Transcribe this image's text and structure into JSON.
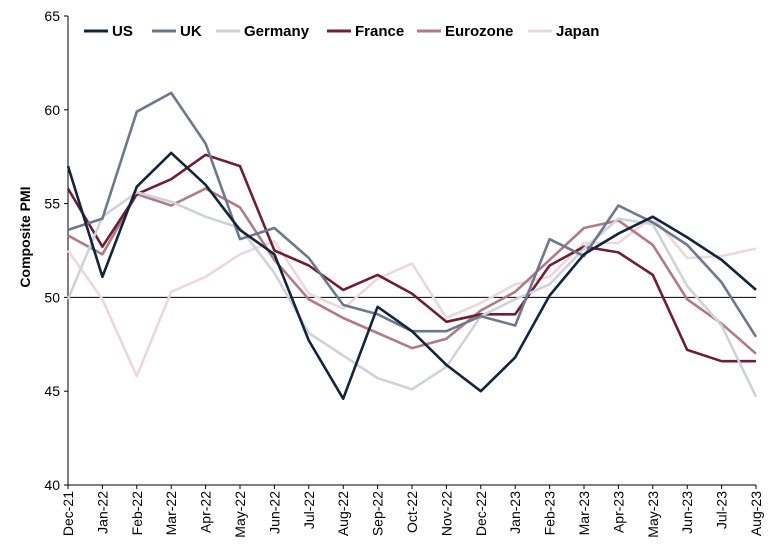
{
  "chart_data": {
    "type": "line",
    "ylabel": "Composite PMI",
    "ylim": [
      40,
      65
    ],
    "yticks": [
      "40",
      "45",
      "50",
      "55",
      "60",
      "65"
    ],
    "reference_line": 50,
    "legend_position": "top",
    "categories": [
      "Dec-21",
      "Jan-22",
      "Feb-22",
      "Mar-22",
      "Apr-22",
      "May-22",
      "Jun-22",
      "Jul-22",
      "Aug-22",
      "Sep-22",
      "Oct-22",
      "Nov-22",
      "Dec-22",
      "Jan-23",
      "Feb-23",
      "Mar-23",
      "Apr-23",
      "May-23",
      "Jun-23",
      "Jul-23",
      "Aug-23"
    ],
    "series": [
      {
        "name": "US",
        "color": "#13243c",
        "values": [
          57.0,
          51.1,
          55.9,
          57.7,
          56.0,
          53.6,
          52.3,
          47.7,
          44.6,
          49.5,
          48.2,
          46.4,
          45.0,
          46.8,
          50.1,
          52.3,
          53.4,
          54.3,
          53.2,
          52.0,
          50.4
        ]
      },
      {
        "name": "UK",
        "color": "#6e788c",
        "values": [
          53.6,
          54.2,
          59.9,
          60.9,
          58.2,
          53.1,
          53.7,
          52.1,
          49.6,
          49.1,
          48.2,
          48.2,
          49.0,
          48.5,
          53.1,
          52.2,
          54.9,
          54.0,
          52.8,
          50.8,
          47.9
        ]
      },
      {
        "name": "Germany",
        "color": "#cfd2da",
        "values": [
          49.9,
          54.3,
          55.6,
          55.1,
          54.3,
          53.7,
          51.3,
          48.1,
          46.9,
          45.7,
          45.1,
          46.3,
          49.0,
          49.9,
          50.7,
          52.6,
          54.2,
          53.9,
          50.6,
          48.5,
          44.7
        ]
      },
      {
        "name": "France",
        "color": "#6e1f36",
        "values": [
          55.8,
          52.7,
          55.5,
          56.3,
          57.6,
          57.0,
          52.5,
          51.7,
          50.4,
          51.2,
          50.2,
          48.7,
          49.1,
          49.1,
          51.7,
          52.7,
          52.4,
          51.2,
          47.2,
          46.6,
          46.6
        ]
      },
      {
        "name": "Eurozone",
        "color": "#b07a86",
        "values": [
          53.3,
          52.3,
          55.5,
          54.9,
          55.8,
          54.8,
          52.0,
          49.9,
          48.9,
          48.1,
          47.3,
          47.8,
          49.3,
          50.3,
          52.0,
          53.7,
          54.1,
          52.8,
          49.9,
          48.6,
          47.0
        ]
      },
      {
        "name": "Japan",
        "color": "#ecd7dc",
        "values": [
          52.5,
          49.9,
          45.8,
          50.3,
          51.1,
          52.3,
          53.0,
          50.2,
          49.4,
          51.0,
          51.8,
          48.9,
          49.7,
          50.7,
          51.1,
          52.9,
          52.9,
          54.3,
          52.1,
          52.2,
          52.6
        ]
      }
    ]
  }
}
